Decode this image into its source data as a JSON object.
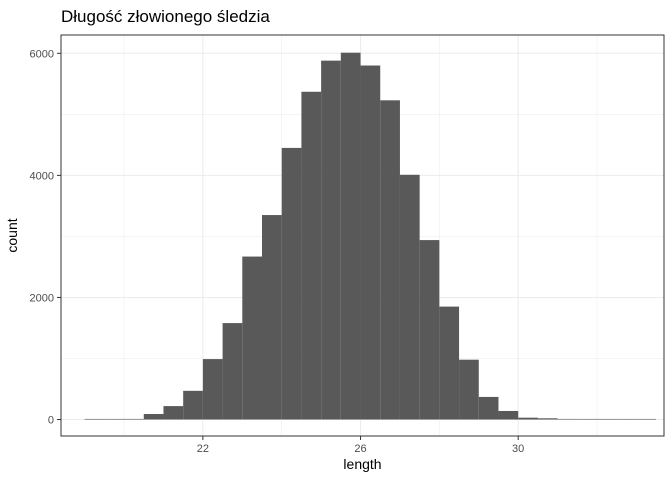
{
  "chart_data": {
    "type": "bar",
    "title": "Długość złowionego śledzia",
    "xlabel": "length",
    "ylabel": "count",
    "bin_width": 0.5,
    "bins_start": 19.0,
    "counts": [
      0,
      0,
      10,
      90,
      220,
      470,
      990,
      1580,
      2670,
      3350,
      4450,
      5370,
      5880,
      6010,
      5800,
      5230,
      4010,
      2940,
      1850,
      980,
      370,
      140,
      30,
      20,
      10,
      5,
      5,
      5,
      5
    ],
    "xlim": [
      18.4,
      33.7
    ],
    "ylim": [
      -270,
      6300
    ],
    "x_ticks": [
      22,
      26,
      30
    ],
    "y_ticks": [
      0,
      2000,
      4000,
      6000
    ],
    "x_tick_labels": [
      "22",
      "26",
      "30"
    ],
    "y_tick_labels": [
      "0",
      "2000",
      "4000",
      "6000"
    ],
    "bar_color": "#595959",
    "grid": true,
    "legend": "none"
  }
}
